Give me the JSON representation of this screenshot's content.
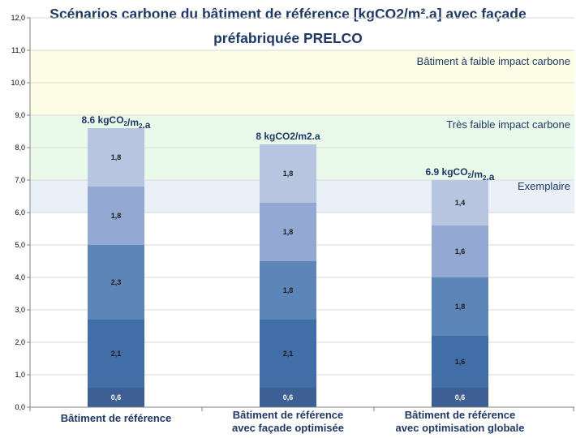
{
  "chart_data": {
    "type": "bar",
    "stacked": true,
    "title_line1": "Scénarios carbone du bâtiment de référence [kgCO2/m².a] avec façade",
    "title_line2": "préfabriquée PRELCO",
    "categories": [
      [
        "Bâtiment  de référence"
      ],
      [
        "Bâtiment  de référence",
        "avec façade  optimisée"
      ],
      [
        "Bâtiment  de référence",
        "avec optimisation  globale"
      ]
    ],
    "series": [
      {
        "values": [
          0.6,
          0.6,
          0.6
        ],
        "labels": [
          "0,6",
          "0,6",
          "0,6"
        ],
        "color": "#3d5f93"
      },
      {
        "values": [
          2.1,
          2.1,
          1.6
        ],
        "labels": [
          "2,1",
          "2,1",
          "1,6"
        ],
        "color": "#426ea8"
      },
      {
        "values": [
          2.3,
          1.8,
          1.8
        ],
        "labels": [
          "2,3",
          "1,8",
          "1,8"
        ],
        "color": "#5c86b8"
      },
      {
        "values": [
          1.8,
          1.8,
          1.6
        ],
        "labels": [
          "1,8",
          "1,8",
          "1,6"
        ],
        "color": "#93a9d3"
      },
      {
        "values": [
          1.8,
          1.8,
          1.4
        ],
        "labels": [
          "1,8",
          "1,8",
          "1,4"
        ],
        "color": "#b7c5e0"
      }
    ],
    "totals": [
      {
        "main": "8.6 kgCO",
        "sub1": "2",
        "mid": "/m",
        "sub2": "2",
        "end": ".a"
      },
      {
        "main": "8 kgCO2/m2.a",
        "sub1": "",
        "mid": "",
        "sub2": "",
        "end": ""
      },
      {
        "main": "6.9 kgCO",
        "sub1": "2",
        "mid": "/m",
        "sub2": "2",
        "end": ".a"
      }
    ],
    "ylim": [
      0,
      12
    ],
    "yticks": [
      "0,0",
      "1,0",
      "2,0",
      "3,0",
      "4,0",
      "5,0",
      "6,0",
      "7,0",
      "8,0",
      "9,0",
      "10,0",
      "11,0",
      "12,0"
    ],
    "grid": true,
    "zones": [
      {
        "from": 9,
        "to": 11,
        "label": "Bâtiment   à faible impact carbone",
        "color": "#fdfde6"
      },
      {
        "from": 7,
        "to": 9,
        "label": "Très faible impact carbone",
        "color": "#eafaea"
      },
      {
        "from": 6,
        "to": 7,
        "label": "Exemplaire",
        "color": "#eaf0f8"
      }
    ]
  }
}
